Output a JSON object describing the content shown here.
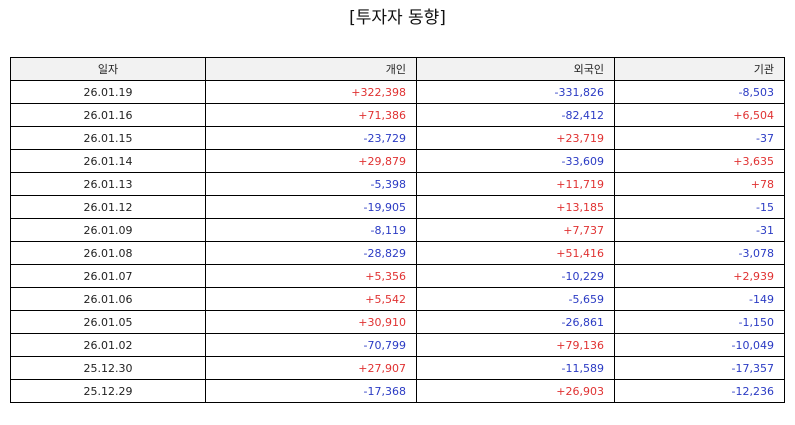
{
  "title": "[투자자 동향]",
  "colors": {
    "positive": "#e03232",
    "negative": "#2b3bc4",
    "header_bg": "#f2f2f2",
    "border": "#000000"
  },
  "table": {
    "headers": [
      "일자",
      "개인",
      "외국인",
      "기관"
    ],
    "rows": [
      {
        "date": "26.01.19",
        "individual": "+322,398",
        "foreign": "-331,826",
        "institution": "-8,503"
      },
      {
        "date": "26.01.16",
        "individual": "+71,386",
        "foreign": "-82,412",
        "institution": "+6,504"
      },
      {
        "date": "26.01.15",
        "individual": "-23,729",
        "foreign": "+23,719",
        "institution": "-37"
      },
      {
        "date": "26.01.14",
        "individual": "+29,879",
        "foreign": "-33,609",
        "institution": "+3,635"
      },
      {
        "date": "26.01.13",
        "individual": "-5,398",
        "foreign": "+11,719",
        "institution": "+78"
      },
      {
        "date": "26.01.12",
        "individual": "-19,905",
        "foreign": "+13,185",
        "institution": "-15"
      },
      {
        "date": "26.01.09",
        "individual": "-8,119",
        "foreign": "+7,737",
        "institution": "-31"
      },
      {
        "date": "26.01.08",
        "individual": "-28,829",
        "foreign": "+51,416",
        "institution": "-3,078"
      },
      {
        "date": "26.01.07",
        "individual": "+5,356",
        "foreign": "-10,229",
        "institution": "+2,939"
      },
      {
        "date": "26.01.06",
        "individual": "+5,542",
        "foreign": "-5,659",
        "institution": "-149"
      },
      {
        "date": "26.01.05",
        "individual": "+30,910",
        "foreign": "-26,861",
        "institution": "-1,150"
      },
      {
        "date": "26.01.02",
        "individual": "-70,799",
        "foreign": "+79,136",
        "institution": "-10,049"
      },
      {
        "date": "25.12.30",
        "individual": "+27,907",
        "foreign": "-11,589",
        "institution": "-17,357"
      },
      {
        "date": "25.12.29",
        "individual": "-17,368",
        "foreign": "+26,903",
        "institution": "-12,236"
      }
    ]
  }
}
